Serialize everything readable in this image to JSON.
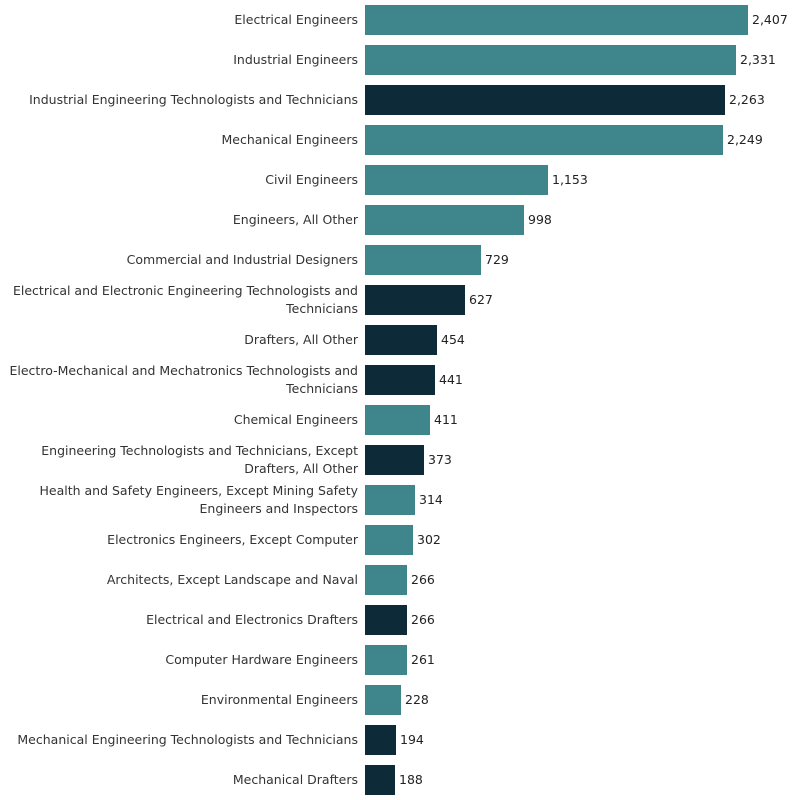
{
  "chart_data": {
    "type": "bar",
    "orientation": "horizontal",
    "title": "",
    "xlabel": "",
    "ylabel": "",
    "xlim": [
      0,
      2500
    ],
    "grid": false,
    "colors": {
      "engineer": "#3f868c",
      "technician": "#0c2a38"
    },
    "categories": [
      "Electrical Engineers",
      "Industrial Engineers",
      "Industrial Engineering Technologists and Technicians",
      "Mechanical Engineers",
      "Civil Engineers",
      "Engineers, All Other",
      "Commercial and Industrial Designers",
      "Electrical and Electronic Engineering Technologists and Technicians",
      "Drafters, All Other",
      "Electro-Mechanical and Mechatronics Technologists and Technicians",
      "Chemical Engineers",
      "Engineering Technologists and Technicians, Except Drafters, All Other",
      "Health and Safety Engineers, Except Mining Safety Engineers and Inspectors",
      "Electronics Engineers, Except Computer",
      "Architects, Except Landscape and Naval",
      "Electrical and Electronics Drafters",
      "Computer Hardware Engineers",
      "Environmental Engineers",
      "Mechanical Engineering Technologists and Technicians",
      "Mechanical Drafters"
    ],
    "label_lines": [
      [
        "Electrical Engineers"
      ],
      [
        "Industrial Engineers"
      ],
      [
        "Industrial Engineering Technologists and Technicians"
      ],
      [
        "Mechanical Engineers"
      ],
      [
        "Civil Engineers"
      ],
      [
        "Engineers, All Other"
      ],
      [
        "Commercial and Industrial Designers"
      ],
      [
        "Electrical and Electronic Engineering Technologists and",
        "Technicians"
      ],
      [
        "Drafters, All Other"
      ],
      [
        "Electro-Mechanical and Mechatronics Technologists and",
        "Technicians"
      ],
      [
        "Chemical Engineers"
      ],
      [
        "Engineering Technologists and Technicians, Except",
        "Drafters, All Other"
      ],
      [
        "Health and Safety Engineers, Except Mining Safety",
        "Engineers and Inspectors"
      ],
      [
        "Electronics Engineers, Except Computer"
      ],
      [
        "Architects, Except Landscape and Naval"
      ],
      [
        "Electrical and Electronics Drafters"
      ],
      [
        "Computer Hardware Engineers"
      ],
      [
        "Environmental Engineers"
      ],
      [
        "Mechanical Engineering Technologists and Technicians"
      ],
      [
        "Mechanical Drafters"
      ]
    ],
    "values": [
      2407,
      2331,
      2263,
      2249,
      1153,
      998,
      729,
      627,
      454,
      441,
      411,
      373,
      314,
      302,
      266,
      266,
      261,
      228,
      194,
      188
    ],
    "value_labels": [
      "2,407",
      "2,331",
      "2,263",
      "2,249",
      "1,153",
      "998",
      "729",
      "627",
      "454",
      "441",
      "411",
      "373",
      "314",
      "302",
      "266",
      "266",
      "261",
      "228",
      "194",
      "188"
    ],
    "groups": [
      "engineer",
      "engineer",
      "technician",
      "engineer",
      "engineer",
      "engineer",
      "engineer",
      "technician",
      "technician",
      "technician",
      "engineer",
      "technician",
      "engineer",
      "engineer",
      "engineer",
      "technician",
      "engineer",
      "engineer",
      "technician",
      "technician"
    ]
  }
}
